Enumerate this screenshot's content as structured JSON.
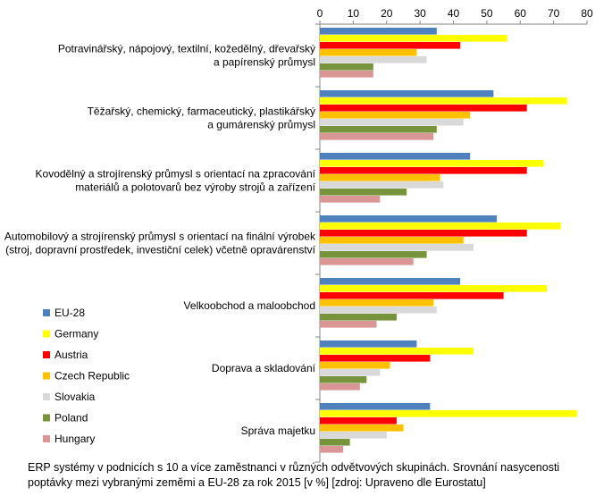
{
  "chart_data": {
    "type": "bar",
    "orientation": "horizontal",
    "title": "",
    "xlabel": "",
    "ylabel": "",
    "xlim": [
      0,
      80
    ],
    "x_ticks": [
      "0",
      "10",
      "20",
      "30",
      "40",
      "50",
      "60",
      "70",
      "80"
    ],
    "x_axis_position": "top",
    "grid": false,
    "legend_position": "bottom-left",
    "categories": [
      [
        "Potravinářský, nápojový, textilní, kožedělný, dřevařský",
        "a papírenský průmysl"
      ],
      [
        "Těžařský, chemický, farmaceutický, plastikářský",
        "a gumárenský průmysl"
      ],
      [
        "Kovodělný a strojírenský průmysl s orientací na zpracování",
        "materiálů a polotovarů bez výroby strojů a zařízení"
      ],
      [
        "Automobilový a strojírenský průmysl s orientací na finální výrobek",
        "(stroj, dopravní prostředek, investiční celek) včetně opravárenství"
      ],
      [
        "Velkoobchod a maloobchod"
      ],
      [
        "Doprava a skladování"
      ],
      [
        "Správa majetku"
      ]
    ],
    "series": [
      {
        "name": "EU-28",
        "color": "#4F81BD",
        "values": [
          35,
          52,
          45,
          53,
          42,
          29,
          33
        ]
      },
      {
        "name": "Germany",
        "color": "#FFFF00",
        "values": [
          56,
          74,
          67,
          72,
          68,
          46,
          77
        ]
      },
      {
        "name": "Austria",
        "color": "#FF0000",
        "values": [
          42,
          62,
          62,
          62,
          55,
          33,
          23
        ]
      },
      {
        "name": "Czech Republic",
        "color": "#FFC000",
        "values": [
          29,
          45,
          36,
          43,
          34,
          21,
          25
        ]
      },
      {
        "name": "Slovakia",
        "color": "#D9D9D9",
        "values": [
          32,
          43,
          37,
          46,
          35,
          18,
          20
        ]
      },
      {
        "name": "Poland",
        "color": "#77933C",
        "values": [
          16,
          35,
          26,
          32,
          23,
          14,
          9
        ]
      },
      {
        "name": "Hungary",
        "color": "#D99694",
        "values": [
          16,
          34,
          18,
          28,
          17,
          12,
          7
        ]
      }
    ]
  },
  "caption": [
    "ERP systémy v podnicích s 10 a více zaměstnanci  v různých odvětvových skupinách. Srovnání nasycenosti",
    "poptávky mezi vybranými zeměmi a EU-28 za rok 2015 [v %] [zdroj: Upraveno dle Eurostatu]"
  ]
}
